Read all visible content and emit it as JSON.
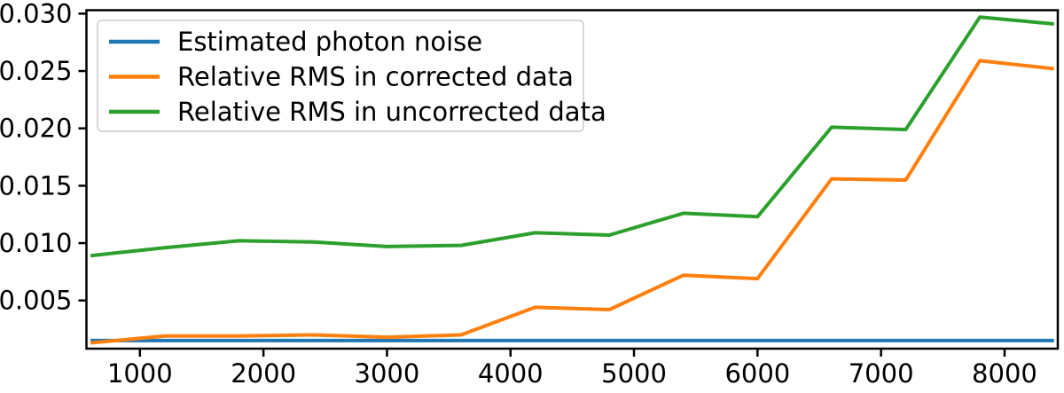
{
  "chart_data": {
    "type": "line",
    "title": "",
    "xlabel": "",
    "ylabel": "",
    "grid": false,
    "legend_position": "upper left",
    "xlim": [
      567,
      8431
    ],
    "ylim": [
      0.0008,
      0.0303
    ],
    "xticks": [
      1000,
      2000,
      3000,
      4000,
      5000,
      6000,
      7000,
      8000
    ],
    "xtick_labels": [
      "1000",
      "2000",
      "3000",
      "4000",
      "5000",
      "6000",
      "7000",
      "8000"
    ],
    "yticks": [
      0.005,
      0.01,
      0.015,
      0.02,
      0.025,
      0.03
    ],
    "ytick_labels": [
      "0.005",
      "0.010",
      "0.015",
      "0.020",
      "0.025",
      "0.030"
    ],
    "x": [
      600,
      1200,
      1800,
      2400,
      3000,
      3600,
      4200,
      4800,
      5400,
      6000,
      6600,
      7200,
      7800,
      8400
    ],
    "series": [
      {
        "name": "Estimated photon noise",
        "color": "#1f77b4",
        "values": [
          0.0015,
          0.0015,
          0.0015,
          0.0015,
          0.0015,
          0.0015,
          0.0015,
          0.0015,
          0.0015,
          0.0015,
          0.0015,
          0.0015,
          0.0015,
          0.0015
        ]
      },
      {
        "name": "Relative RMS in corrected data",
        "color": "#ff7f0e",
        "values": [
          0.0013,
          0.0019,
          0.0019,
          0.002,
          0.0018,
          0.002,
          0.0044,
          0.0042,
          0.0072,
          0.0069,
          0.0156,
          0.0155,
          0.0259,
          0.0252
        ]
      },
      {
        "name": "Relative RMS in uncorrected data",
        "color": "#2ca02c",
        "values": [
          0.0089,
          0.0096,
          0.0102,
          0.0101,
          0.0097,
          0.0098,
          0.0109,
          0.0107,
          0.0126,
          0.0123,
          0.0201,
          0.0199,
          0.0297,
          0.0291
        ]
      }
    ],
    "axis_color": "#000000",
    "legend_border_color": "#cccccc",
    "legend_background": "#ffffff"
  }
}
